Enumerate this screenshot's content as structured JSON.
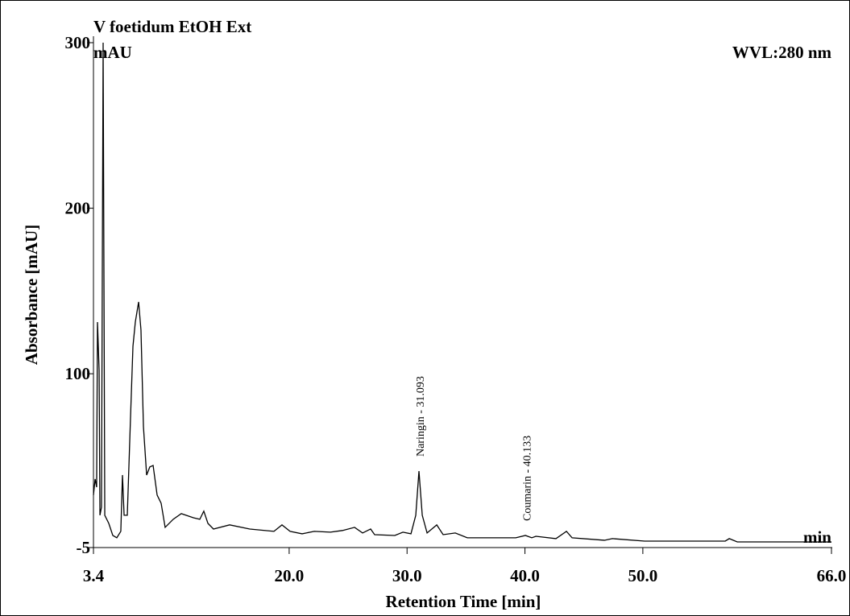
{
  "chart_data": {
    "type": "line",
    "title": "V foetidum  EtOH Ext",
    "y_unit": "mAU",
    "x_unit": "min",
    "wavelength": "WVL:280 nm",
    "x_label": "Retention Time [min]",
    "y_label": "Absorbance [mAU]",
    "color": "#000000",
    "xlim": [
      3.4,
      66.0
    ],
    "ylim": [
      -5,
      300
    ],
    "xticks": [
      3.4,
      {
        "value": 20,
        "label": "20.0"
      },
      {
        "value": 30,
        "label": "30.0"
      },
      {
        "value": 40,
        "label": "40.0"
      },
      {
        "value": 50,
        "label": "50.0"
      },
      {
        "value": 66,
        "label": "66.0"
      }
    ],
    "yticks": [
      -5,
      100,
      200,
      300
    ],
    "annotations": [
      {
        "label": "Naringin - 31.093",
        "x": 31.093
      },
      {
        "label": "Coumarin - 40.133",
        "x": 40.133
      }
    ],
    "x": [
      3.4,
      3.54,
      3.67,
      3.74,
      3.88,
      3.95,
      4.08,
      4.22,
      4.36,
      4.7,
      5.04,
      5.38,
      5.72,
      5.86,
      6.0,
      6.27,
      6.54,
      6.75,
      6.95,
      7.23,
      7.43,
      7.64,
      7.91,
      8.18,
      8.46,
      8.8,
      9.14,
      9.48,
      10.17,
      10.85,
      11.88,
      12.42,
      12.76,
      13.11,
      13.58,
      14.95,
      16.66,
      18.71,
      19.39,
      20.08,
      21.1,
      22.13,
      23.5,
      24.52,
      25.55,
      26.23,
      26.91,
      27.25,
      28.96,
      29.65,
      30.33,
      30.74,
      31.01,
      31.29,
      31.7,
      32.52,
      33.06,
      34.09,
      35.11,
      39.22,
      40.04,
      40.58,
      40.93,
      42.63,
      43.52,
      44.0,
      46.74,
      47.42,
      50.15,
      56.99,
      57.33,
      58.01,
      66.0
    ],
    "values": [
      26.7,
      36.4,
      31.5,
      131.2,
      102,
      14.5,
      19.4,
      300,
      14.5,
      9.6,
      2.3,
      0.9,
      4.8,
      38.8,
      14.5,
      14.5,
      72.9,
      116.6,
      131.2,
      143.4,
      126.4,
      68,
      38.8,
      43.7,
      44.6,
      26.7,
      21.8,
      7.2,
      12.1,
      15.5,
      13.0,
      12.1,
      17.0,
      9.6,
      6.2,
      8.7,
      6.2,
      4.8,
      8.7,
      4.8,
      3.3,
      4.8,
      4.3,
      5.3,
      7.2,
      3.8,
      6.2,
      2.8,
      2.3,
      4.3,
      3.3,
      14.5,
      41.2,
      14.5,
      3.8,
      8.7,
      2.8,
      3.8,
      0.9,
      0.9,
      2.3,
      0.9,
      1.8,
      0.4,
      4.8,
      0.9,
      -0.6,
      0.4,
      -1.1,
      -1.1,
      0.4,
      -1.6,
      -1.6
    ]
  }
}
